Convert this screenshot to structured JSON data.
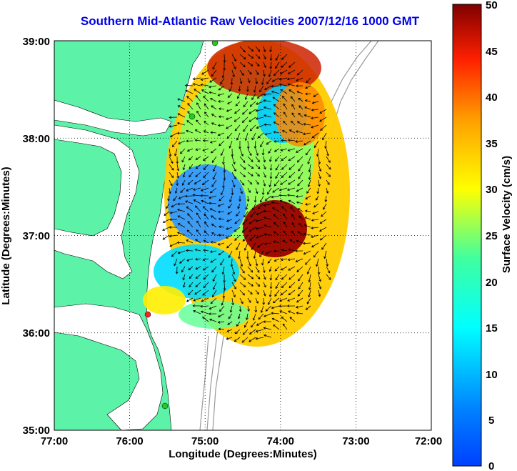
{
  "title": "Southern Mid-Atlantic Raw Velocities 2007/12/16 1000 GMT",
  "xlabel": "Longitude (Degrees:Minutes)",
  "ylabel": "Latitude (Degrees:Minutes)",
  "colorbar_label": "Surface Velocity (cm/s)",
  "x_ticks": [
    "77:00",
    "76:00",
    "75:00",
    "74:00",
    "73:00",
    "72:00"
  ],
  "y_ticks": [
    "39:00",
    "38:00",
    "37:00",
    "36:00",
    "35:00"
  ],
  "colorbar_ticks": [
    "50",
    "45",
    "40",
    "35",
    "30",
    "25",
    "20",
    "15",
    "10",
    "5",
    "0"
  ],
  "colors": {
    "land": "#5cf2a8",
    "title": "#0000e6",
    "grid": "#000000",
    "bathymetry": "#999999",
    "station_green": "#22cc22",
    "station_red": "#ff2222"
  },
  "chart_data": {
    "type": "heatmap",
    "title": "Southern Mid-Atlantic Raw Velocities 2007/12/16 1000 GMT",
    "xlabel": "Longitude (Degrees:Minutes)",
    "ylabel": "Latitude (Degrees:Minutes)",
    "xlim": [
      -77,
      -72
    ],
    "ylim": [
      35,
      39
    ],
    "colorbar": {
      "label": "Surface Velocity (cm/s)",
      "range": [
        0,
        50
      ],
      "colormap": "jet"
    },
    "grid": true,
    "stations": [
      {
        "lon": -74.86,
        "lat": 38.97,
        "color": "green"
      },
      {
        "lon": -75.15,
        "lat": 38.22,
        "color": "green"
      },
      {
        "lon": -75.75,
        "lat": 36.18,
        "color": "red"
      },
      {
        "lon": -75.5,
        "lat": 35.25,
        "color": "green"
      }
    ]
  }
}
